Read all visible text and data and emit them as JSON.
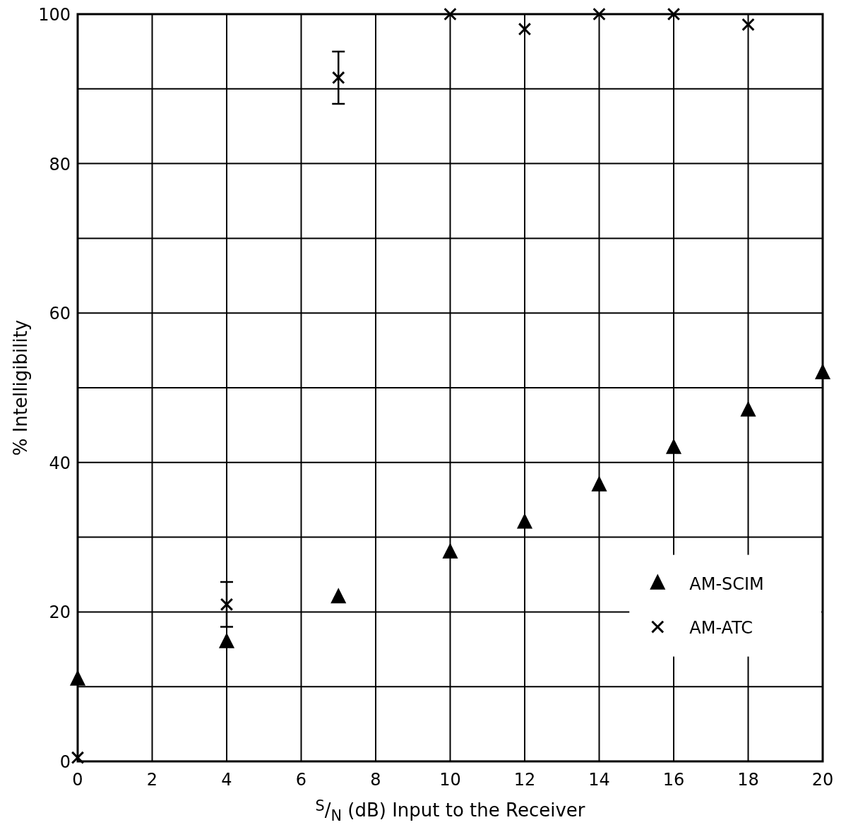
{
  "chart_data": {
    "type": "scatter",
    "xlabel": "$^{S}$/$_{N}$ (dB) Input to the Receiver",
    "ylabel": "% Intelligibility",
    "xlim": [
      0,
      20
    ],
    "ylim": [
      0,
      100
    ],
    "xticks": [
      0,
      2,
      4,
      6,
      8,
      10,
      12,
      14,
      16,
      18,
      20
    ],
    "yticks": [
      0,
      {
        "value": 10,
        "label": null
      },
      20,
      {
        "value": 30,
        "label": null
      },
      40,
      {
        "value": 50,
        "label": null
      },
      60,
      {
        "value": 70,
        "label": null
      },
      80,
      {
        "value": 90,
        "label": null
      },
      100
    ],
    "grid": true,
    "legend": "bottom right",
    "series": [
      {
        "name": "AM-SCIM",
        "color": "#000000",
        "marker": "triangle",
        "x": [
          0,
          4,
          7,
          10,
          12,
          14,
          16,
          18,
          20
        ],
        "values": [
          11,
          16,
          22,
          28,
          32,
          37,
          42,
          47,
          52
        ]
      },
      {
        "name": "AM-ATC",
        "color": "#000000",
        "marker": "cross",
        "x": [
          0,
          4,
          7,
          10,
          12,
          14,
          16,
          18
        ],
        "values": [
          0.5,
          21,
          91.5,
          100,
          98,
          100,
          100,
          98.6
        ],
        "errors": [
          null,
          [
            18,
            24
          ],
          [
            88,
            95
          ],
          null,
          null,
          null,
          null,
          null
        ]
      }
    ]
  }
}
